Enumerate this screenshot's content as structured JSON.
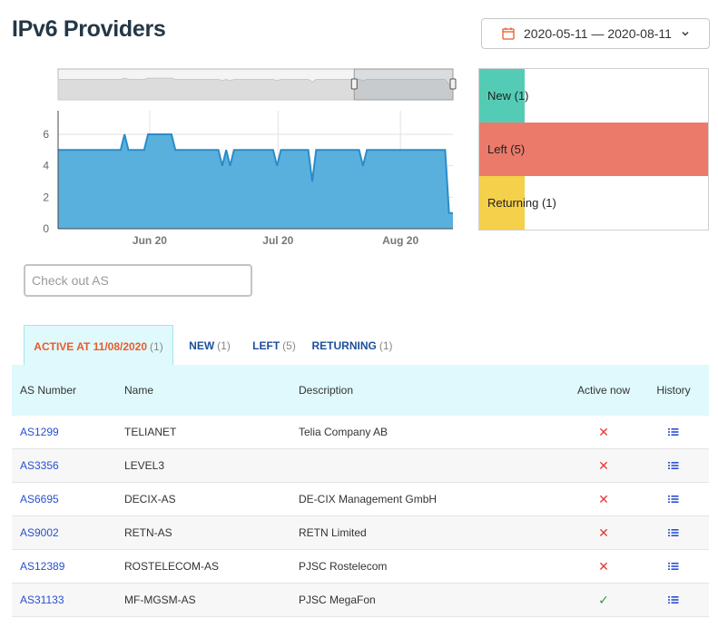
{
  "page": {
    "title": "IPv6 Providers"
  },
  "date_range": {
    "label": "2020-05-11 — 2020-08-11",
    "icon": "calendar-icon",
    "accent": "#e85b2a"
  },
  "chart_data": {
    "type": "area",
    "y_ticks": [
      "0",
      "2",
      "4",
      "6"
    ],
    "x_ticks": [
      "Jun 20",
      "Jul 20",
      "Aug 20"
    ],
    "ylim": [
      0,
      7.5
    ],
    "fill_color": "#5ab0dd",
    "line_color": "#2a8cc8",
    "values": [
      5,
      5,
      5,
      5,
      5,
      5,
      5,
      5,
      5,
      5,
      5,
      5,
      5,
      5,
      5,
      5,
      5,
      6,
      5,
      5,
      5,
      5,
      5,
      6,
      6,
      6,
      6,
      6,
      6,
      6,
      5,
      5,
      5,
      5,
      5,
      5,
      5,
      5,
      5,
      5,
      5,
      5,
      4,
      5,
      4,
      5,
      5,
      5,
      5,
      5,
      5,
      5,
      5,
      5,
      5,
      5,
      4,
      5,
      5,
      5,
      5,
      5,
      5,
      5,
      5,
      3,
      5,
      5,
      5,
      5,
      5,
      5,
      5,
      5,
      5,
      5,
      5,
      5,
      4,
      5,
      5,
      5,
      5,
      5,
      5,
      5,
      5,
      5,
      5,
      5,
      5,
      5,
      5,
      5,
      5,
      5,
      5,
      5,
      5,
      5,
      1,
      1
    ],
    "navigator": {
      "selection_fraction": [
        0.75,
        1.0
      ]
    }
  },
  "legend": [
    {
      "label": "New (1)",
      "color": "#54ccb5",
      "fraction": 0.2
    },
    {
      "label": "Left (5)",
      "color": "#ec7a6b",
      "fraction": 1.0
    },
    {
      "label": "Returning (1)",
      "color": "#f4d04b",
      "fraction": 0.2
    }
  ],
  "search": {
    "placeholder": "Check out AS",
    "value": ""
  },
  "tabs": [
    {
      "label": "ACTIVE AT 11/08/2020",
      "count": "(1)",
      "active": true
    },
    {
      "label": "NEW",
      "count": "(1)",
      "active": false
    },
    {
      "label": "LEFT",
      "count": "(5)",
      "active": false
    },
    {
      "label": "RETURNING",
      "count": "(1)",
      "active": false
    }
  ],
  "table": {
    "headers": {
      "as": "AS Number",
      "name": "Name",
      "description": "Description",
      "active": "Active now",
      "history": "History"
    },
    "rows": [
      {
        "as": "AS1299",
        "name": "TELIANET",
        "description": "Telia Company AB",
        "active": "✕",
        "active_state": false
      },
      {
        "as": "AS3356",
        "name": "LEVEL3",
        "description": "",
        "active": "✕",
        "active_state": false
      },
      {
        "as": "AS6695",
        "name": "DECIX-AS",
        "description": "DE-CIX Management GmbH",
        "active": "✕",
        "active_state": false
      },
      {
        "as": "AS9002",
        "name": "RETN-AS",
        "description": "RETN Limited",
        "active": "✕",
        "active_state": false
      },
      {
        "as": "AS12389",
        "name": "ROSTELECOM-AS",
        "description": "PJSC Rostelecom",
        "active": "✕",
        "active_state": false
      },
      {
        "as": "AS31133",
        "name": "MF-MGSM-AS",
        "description": "PJSC MegaFon",
        "active": "✓",
        "active_state": true
      }
    ]
  }
}
